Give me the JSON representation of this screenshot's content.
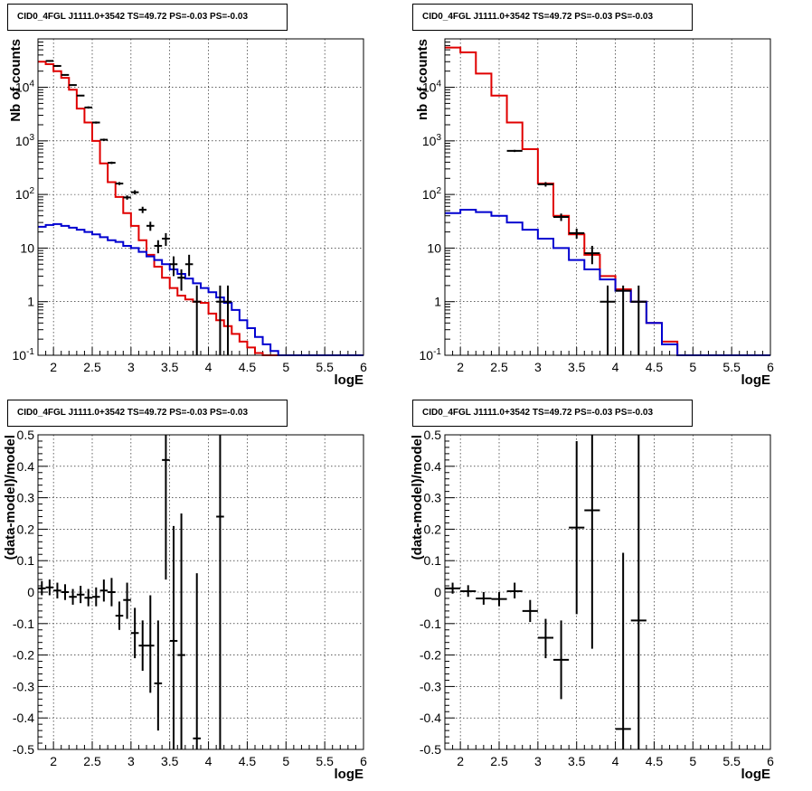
{
  "chart_data": [
    {
      "type": "line",
      "title": "CID0_4FGL J1111.0+3542 TS=49.72 PS=-0.03 PS=-0.03",
      "xlabel": "logE",
      "ylabel": "Nb of counts",
      "yscale": "log",
      "xlim": [
        1.8,
        6.0
      ],
      "ylim": [
        0.1,
        80000
      ],
      "x_ticks": [
        "2",
        "2.5",
        "3",
        "3.5",
        "4",
        "4.5",
        "5",
        "5.5",
        "6"
      ],
      "y_ticks": [
        "10^-1",
        "1",
        "10",
        "10^2",
        "10^3",
        "10^4"
      ],
      "grid": true,
      "bin_edges": [
        1.8,
        1.9,
        2.0,
        2.1,
        2.2,
        2.3,
        2.4,
        2.5,
        2.6,
        2.7,
        2.8,
        2.9,
        3.0,
        3.1,
        3.2,
        3.3,
        3.4,
        3.5,
        3.6,
        3.7,
        3.8,
        3.9,
        4.0,
        4.1,
        4.2,
        4.3,
        4.4,
        4.5,
        4.6,
        4.7,
        4.8,
        4.9,
        5.0,
        5.1,
        5.2,
        5.3,
        5.4,
        5.5,
        5.6,
        5.7,
        5.8,
        5.9,
        6.0
      ],
      "series": [
        {
          "color": "#e00000",
          "values": [
            30000,
            27000,
            20000,
            15000,
            9000,
            4000,
            2200,
            1000,
            380,
            170,
            90,
            45,
            26,
            14,
            7.5,
            4.5,
            2.8,
            1.8,
            1.3,
            1.1,
            1.0,
            0.95,
            0.6,
            0.45,
            0.35,
            0.25,
            0.18,
            0.14,
            0.11,
            0.1,
            0.1,
            0.1,
            0.1,
            0.1,
            0.1,
            0.1,
            0.1,
            0.1,
            0.1,
            0.1,
            0.1,
            0.1
          ]
        },
        {
          "color": "#0000d0",
          "values": [
            25,
            27,
            28,
            26,
            24,
            22,
            20,
            18,
            16,
            14,
            13,
            11,
            10,
            8.5,
            7,
            6,
            5,
            4,
            3.3,
            2.7,
            2.2,
            1.8,
            1.5,
            1.2,
            0.95,
            0.7,
            0.45,
            0.32,
            0.22,
            0.16,
            0.12,
            0.1,
            0.1,
            0.1,
            0.1,
            0.1,
            0.1,
            0.1,
            0.1,
            0.1,
            0.1,
            0.1
          ]
        }
      ],
      "points": [
        {
          "x": 1.95,
          "y": 31000,
          "ylo": 30000,
          "yhi": 32000
        },
        {
          "x": 2.05,
          "y": 25000,
          "ylo": 24000,
          "yhi": 26000
        },
        {
          "x": 2.15,
          "y": 17000,
          "ylo": 16500,
          "yhi": 17500
        },
        {
          "x": 2.25,
          "y": 11000,
          "ylo": 10700,
          "yhi": 11300
        },
        {
          "x": 2.35,
          "y": 7000,
          "ylo": 6800,
          "yhi": 7200
        },
        {
          "x": 2.45,
          "y": 4200,
          "ylo": 4000,
          "yhi": 4400
        },
        {
          "x": 2.55,
          "y": 2200,
          "ylo": 2100,
          "yhi": 2300
        },
        {
          "x": 2.65,
          "y": 1050,
          "ylo": 1000,
          "yhi": 1100
        },
        {
          "x": 2.75,
          "y": 390,
          "ylo": 370,
          "yhi": 410
        },
        {
          "x": 2.85,
          "y": 160,
          "ylo": 150,
          "yhi": 170
        },
        {
          "x": 2.95,
          "y": 88,
          "ylo": 80,
          "yhi": 96
        },
        {
          "x": 3.05,
          "y": 110,
          "ylo": 100,
          "yhi": 120
        },
        {
          "x": 3.15,
          "y": 52,
          "ylo": 45,
          "yhi": 59
        },
        {
          "x": 3.25,
          "y": 26,
          "ylo": 21,
          "yhi": 31
        },
        {
          "x": 3.35,
          "y": 11,
          "ylo": 8,
          "yhi": 14
        },
        {
          "x": 3.45,
          "y": 15,
          "ylo": 11,
          "yhi": 19
        },
        {
          "x": 3.55,
          "y": 5,
          "ylo": 3,
          "yhi": 7
        },
        {
          "x": 3.65,
          "y": 2.8,
          "ylo": 1.6,
          "yhi": 4
        },
        {
          "x": 3.75,
          "y": 5,
          "ylo": 3,
          "yhi": 7.5
        },
        {
          "x": 3.85,
          "y": 1,
          "ylo": 0.1,
          "yhi": 2
        },
        {
          "x": 4.15,
          "y": 1,
          "ylo": 0.1,
          "yhi": 2
        },
        {
          "x": 4.25,
          "y": 1,
          "ylo": 0.1,
          "yhi": 2
        }
      ]
    },
    {
      "type": "line",
      "title": "CID0_4FGL J1111.0+3542 TS=49.72 PS=-0.03 PS=-0.03",
      "xlabel": "logE",
      "ylabel": "nb of counts",
      "yscale": "log",
      "xlim": [
        1.8,
        6.0
      ],
      "ylim": [
        0.1,
        80000
      ],
      "x_ticks": [
        "2",
        "2.5",
        "3",
        "3.5",
        "4",
        "4.5",
        "5",
        "5.5",
        "6"
      ],
      "y_ticks": [
        "10^-1",
        "1",
        "10",
        "10^2",
        "10^3",
        "10^4"
      ],
      "grid": true,
      "bin_edges": [
        1.8,
        2.0,
        2.2,
        2.4,
        2.6,
        2.8,
        3.0,
        3.2,
        3.4,
        3.6,
        3.8,
        4.0,
        4.2,
        4.4,
        4.6,
        4.8,
        5.0,
        5.2,
        5.4,
        5.6,
        5.8,
        6.0
      ],
      "series": [
        {
          "color": "#e00000",
          "values": [
            55000,
            45000,
            18000,
            7000,
            2200,
            700,
            160,
            40,
            18,
            7.5,
            3,
            1.7,
            1,
            0.4,
            0.18,
            0.1,
            0.1,
            0.1,
            0.1,
            0.1,
            0.1
          ]
        },
        {
          "color": "#0000d0",
          "values": [
            45,
            52,
            47,
            40,
            30,
            22,
            15,
            10,
            6,
            4,
            2.6,
            1.6,
            1,
            0.4,
            0.16,
            0.1,
            0.1,
            0.1,
            0.1,
            0.1,
            0.1
          ]
        }
      ],
      "points": [
        {
          "x": 2.7,
          "y": 650,
          "ylo": 620,
          "yhi": 680
        },
        {
          "x": 3.1,
          "y": 155,
          "ylo": 140,
          "yhi": 170
        },
        {
          "x": 3.3,
          "y": 38,
          "ylo": 32,
          "yhi": 44
        },
        {
          "x": 3.5,
          "y": 19,
          "ylo": 15,
          "yhi": 23
        },
        {
          "x": 3.7,
          "y": 8,
          "ylo": 5,
          "yhi": 11
        },
        {
          "x": 3.9,
          "y": 1,
          "ylo": 0.1,
          "yhi": 2
        },
        {
          "x": 4.1,
          "y": 1.6,
          "ylo": 0.1,
          "yhi": 2
        },
        {
          "x": 4.3,
          "y": 1,
          "ylo": 0.1,
          "yhi": 2
        }
      ]
    },
    {
      "type": "scatter",
      "title": "CID0_4FGL J1111.0+3542 TS=49.72 PS=-0.03 PS=-0.03",
      "xlabel": "logE",
      "ylabel": "(data-model)/model",
      "xlim": [
        1.8,
        6.0
      ],
      "ylim": [
        -0.5,
        0.5
      ],
      "x_ticks": [
        "2",
        "2.5",
        "3",
        "3.5",
        "4",
        "4.5",
        "5",
        "5.5",
        "6"
      ],
      "y_ticks": [
        "-0.5",
        "-0.4",
        "-0.3",
        "-0.2",
        "-0.1",
        "0",
        "0.1",
        "0.2",
        "0.3",
        "0.4",
        "0.5"
      ],
      "grid": true,
      "xerr": 0.05,
      "points": [
        {
          "x": 1.85,
          "y": 0.012,
          "ylo": -0.01,
          "yhi": 0.035
        },
        {
          "x": 1.95,
          "y": 0.015,
          "ylo": -0.01,
          "yhi": 0.04
        },
        {
          "x": 2.05,
          "y": 0.005,
          "ylo": -0.02,
          "yhi": 0.03
        },
        {
          "x": 2.15,
          "y": 0.0,
          "ylo": -0.025,
          "yhi": 0.025
        },
        {
          "x": 2.25,
          "y": -0.015,
          "ylo": -0.04,
          "yhi": 0.01
        },
        {
          "x": 2.35,
          "y": -0.008,
          "ylo": -0.035,
          "yhi": 0.02
        },
        {
          "x": 2.45,
          "y": -0.018,
          "ylo": -0.045,
          "yhi": 0.01
        },
        {
          "x": 2.55,
          "y": -0.015,
          "ylo": -0.045,
          "yhi": 0.015
        },
        {
          "x": 2.65,
          "y": 0.005,
          "ylo": -0.03,
          "yhi": 0.04
        },
        {
          "x": 2.75,
          "y": 0.0,
          "ylo": -0.045,
          "yhi": 0.045
        },
        {
          "x": 2.85,
          "y": -0.075,
          "ylo": -0.12,
          "yhi": -0.03
        },
        {
          "x": 2.95,
          "y": -0.025,
          "ylo": -0.085,
          "yhi": 0.03
        },
        {
          "x": 3.05,
          "y": -0.13,
          "ylo": -0.21,
          "yhi": -0.05
        },
        {
          "x": 3.15,
          "y": -0.17,
          "ylo": -0.25,
          "yhi": -0.09
        },
        {
          "x": 3.25,
          "y": -0.17,
          "ylo": -0.32,
          "yhi": -0.01
        },
        {
          "x": 3.35,
          "y": -0.29,
          "ylo": -0.44,
          "yhi": -0.09
        },
        {
          "x": 3.45,
          "y": 0.42,
          "ylo": 0.04,
          "yhi": 0.5
        },
        {
          "x": 3.55,
          "y": -0.155,
          "ylo": -0.5,
          "yhi": 0.21
        },
        {
          "x": 3.65,
          "y": -0.2,
          "ylo": -0.5,
          "yhi": 0.25
        },
        {
          "x": 3.85,
          "y": -0.465,
          "ylo": -0.5,
          "yhi": 0.06
        },
        {
          "x": 4.15,
          "y": 0.24,
          "ylo": -0.5,
          "yhi": 0.5
        }
      ]
    },
    {
      "type": "scatter",
      "title": "CID0_4FGL J1111.0+3542 TS=49.72 PS=-0.03 PS=-0.03",
      "xlabel": "logE",
      "ylabel": "(data-model)/model",
      "xlim": [
        1.8,
        6.0
      ],
      "ylim": [
        -0.5,
        0.5
      ],
      "x_ticks": [
        "2",
        "2.5",
        "3",
        "3.5",
        "4",
        "4.5",
        "5",
        "5.5",
        "6"
      ],
      "y_ticks": [
        "-0.5",
        "-0.4",
        "-0.3",
        "-0.2",
        "-0.1",
        "0",
        "0.1",
        "0.2",
        "0.3",
        "0.4",
        "0.5"
      ],
      "grid": true,
      "xerr": 0.1,
      "points": [
        {
          "x": 1.9,
          "y": 0.012,
          "ylo": -0.005,
          "yhi": 0.03
        },
        {
          "x": 2.1,
          "y": 0.003,
          "ylo": -0.015,
          "yhi": 0.022
        },
        {
          "x": 2.3,
          "y": -0.02,
          "ylo": -0.04,
          "yhi": 0.0
        },
        {
          "x": 2.5,
          "y": -0.022,
          "ylo": -0.045,
          "yhi": 0.0
        },
        {
          "x": 2.7,
          "y": 0.003,
          "ylo": -0.02,
          "yhi": 0.03
        },
        {
          "x": 2.9,
          "y": -0.06,
          "ylo": -0.095,
          "yhi": -0.025
        },
        {
          "x": 3.1,
          "y": -0.145,
          "ylo": -0.21,
          "yhi": -0.085
        },
        {
          "x": 3.3,
          "y": -0.215,
          "ylo": -0.34,
          "yhi": -0.09
        },
        {
          "x": 3.5,
          "y": 0.205,
          "ylo": -0.07,
          "yhi": 0.48
        },
        {
          "x": 3.7,
          "y": 0.26,
          "ylo": -0.18,
          "yhi": 0.5
        },
        {
          "x": 4.1,
          "y": -0.435,
          "ylo": -0.5,
          "yhi": 0.125
        },
        {
          "x": 4.3,
          "y": -0.09,
          "ylo": -0.5,
          "yhi": 0.5
        }
      ]
    }
  ]
}
